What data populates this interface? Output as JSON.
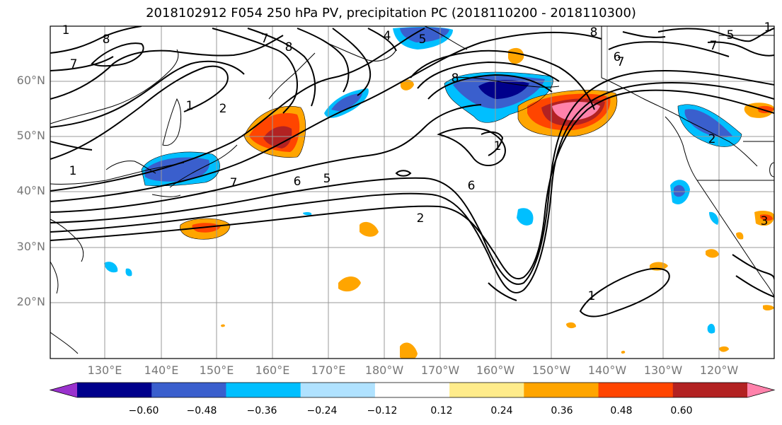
{
  "title": "2018102912 F054 250 hPa PV, precipitation PC (2018110200 - 2018110300)",
  "latitude_labels": [
    "60°N",
    "50°N",
    "40°N",
    "30°N",
    "20°N"
  ],
  "longitude_labels": [
    "130°E",
    "140°E",
    "150°E",
    "160°E",
    "170°E",
    "180°W",
    "170°W",
    "160°W",
    "150°W",
    "140°W",
    "130°W",
    "120°W"
  ],
  "colorbar": {
    "tick_labels": [
      "−0.60",
      "−0.48",
      "−0.36",
      "−0.24",
      "−0.12",
      "0.12",
      "0.24",
      "0.36",
      "0.48",
      "0.60"
    ],
    "colors": [
      "#9a32cd",
      "#00008b",
      "#3a5fcd",
      "#00bfff",
      "#b0e2ff",
      "#ffffff",
      "#ffec8b",
      "#ffa500",
      "#ff4500",
      "#b22222",
      "#ff82ab"
    ]
  },
  "contour_labels": [
    "1",
    "8",
    "7",
    "8",
    "7",
    "1",
    "2",
    "1",
    "7",
    "6",
    "5",
    "2",
    "1",
    "4",
    "5",
    "8",
    "6",
    "7",
    "7",
    "1",
    "6",
    "8",
    "5",
    "2",
    "1",
    "3"
  ]
}
